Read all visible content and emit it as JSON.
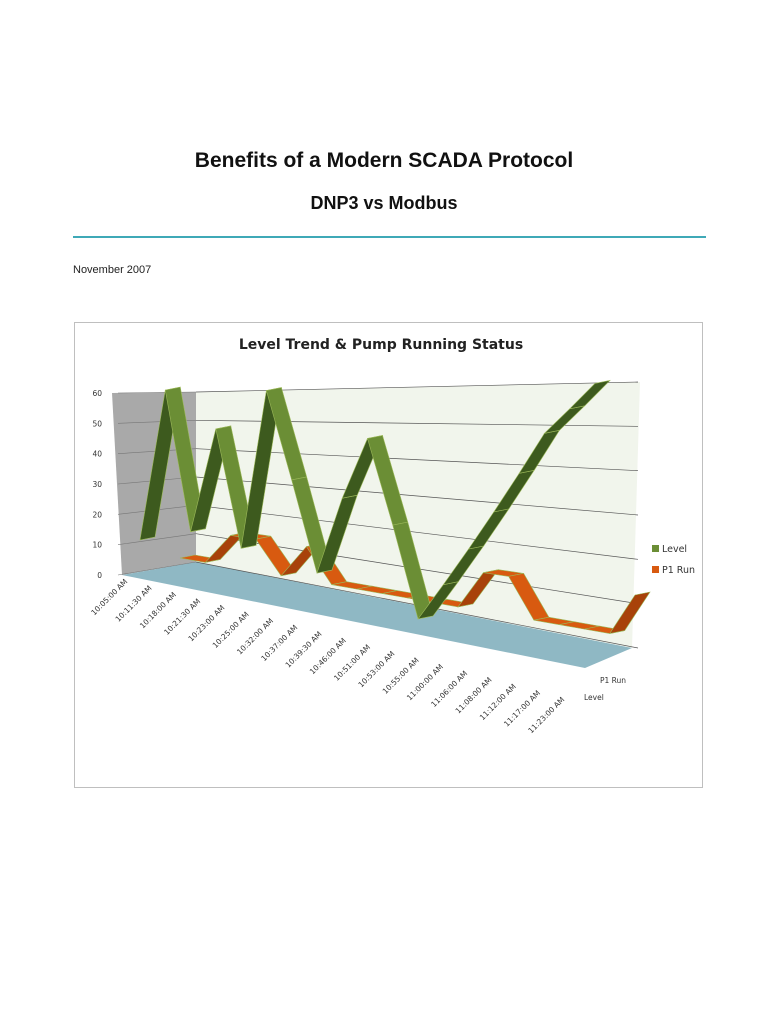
{
  "document": {
    "title": "Benefits of a Modern SCADA Protocol",
    "subtitle": "DNP3 vs Modbus",
    "date": "November 2007",
    "rule_color": "#3fa9b7"
  },
  "chart_data": {
    "type": "3d-line",
    "title": "Level Trend & Pump Running Status",
    "categories": [
      "10:05:00 AM",
      "10:11:30 AM",
      "10:18:00 AM",
      "10:21:30 AM",
      "10:23:00 AM",
      "10:25:00 AM",
      "10:32:00 AM",
      "10:37:00 AM",
      "10:39:30 AM",
      "10:46:00 AM",
      "10:51:00 AM",
      "10:53:00 AM",
      "10:55:00 AM",
      "11:00:00 AM",
      "11:06:00 AM",
      "11:08:00 AM",
      "11:12:00 AM",
      "11:17:00 AM",
      "11:23:00 AM"
    ],
    "yticks": [
      0,
      10,
      20,
      30,
      40,
      50,
      60
    ],
    "ylim": [
      0,
      60
    ],
    "depth_labels": [
      "P1 Run",
      "Level"
    ],
    "series": [
      {
        "name": "Level",
        "color": "#6b8e35",
        "values": [
          10,
          60,
          15,
          48,
          12,
          60,
          34,
          8,
          30,
          47,
          24,
          0,
          10,
          20,
          30,
          40,
          50,
          56,
          62
        ]
      },
      {
        "name": "P1 Run",
        "color": "#d85a10",
        "values": [
          0,
          0,
          10,
          10,
          0,
          10,
          0,
          0,
          0,
          0,
          0,
          0,
          10,
          10,
          0,
          0,
          0,
          0,
          10
        ]
      }
    ],
    "grid": true,
    "legend": "right"
  }
}
